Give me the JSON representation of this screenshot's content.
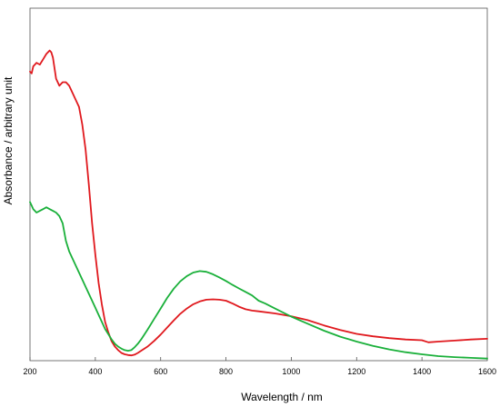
{
  "chart_data": {
    "type": "line",
    "xlabel": "Wavelength / nm",
    "ylabel": "Absorbance / arbitrary unit",
    "xlim": [
      200,
      1600
    ],
    "ylim": [
      0,
      1
    ],
    "x_ticks": [
      200,
      400,
      600,
      800,
      1000,
      1200,
      1400,
      1600
    ],
    "y_ticks_shown": false,
    "grid": false,
    "legend": "none",
    "series": [
      {
        "color": "#e0191e",
        "x": [
          200,
          205,
          210,
          220,
          230,
          240,
          250,
          260,
          265,
          270,
          280,
          290,
          300,
          310,
          320,
          330,
          340,
          350,
          360,
          370,
          380,
          390,
          400,
          410,
          420,
          430,
          440,
          450,
          460,
          470,
          480,
          490,
          500,
          510,
          520,
          530,
          540,
          560,
          580,
          600,
          620,
          640,
          660,
          680,
          700,
          720,
          740,
          760,
          780,
          800,
          820,
          840,
          860,
          880,
          900,
          950,
          1000,
          1050,
          1100,
          1150,
          1200,
          1250,
          1300,
          1350,
          1400,
          1420,
          1450,
          1500,
          1550,
          1600
        ],
        "y": [
          0.82,
          0.815,
          0.835,
          0.845,
          0.84,
          0.855,
          0.87,
          0.88,
          0.875,
          0.86,
          0.8,
          0.78,
          0.79,
          0.79,
          0.78,
          0.76,
          0.74,
          0.72,
          0.67,
          0.6,
          0.5,
          0.39,
          0.3,
          0.22,
          0.16,
          0.11,
          0.08,
          0.055,
          0.04,
          0.03,
          0.022,
          0.018,
          0.016,
          0.015,
          0.017,
          0.022,
          0.028,
          0.04,
          0.056,
          0.074,
          0.094,
          0.114,
          0.133,
          0.148,
          0.16,
          0.168,
          0.173,
          0.174,
          0.173,
          0.17,
          0.162,
          0.153,
          0.146,
          0.142,
          0.14,
          0.134,
          0.126,
          0.115,
          0.1,
          0.087,
          0.076,
          0.069,
          0.064,
          0.06,
          0.058,
          0.052,
          0.054,
          0.057,
          0.06,
          0.062
        ]
      },
      {
        "color": "#1ab03a",
        "x": [
          200,
          205,
          210,
          220,
          230,
          240,
          250,
          260,
          270,
          280,
          290,
          300,
          310,
          320,
          330,
          340,
          350,
          360,
          370,
          380,
          390,
          400,
          410,
          420,
          430,
          440,
          450,
          460,
          470,
          480,
          490,
          500,
          510,
          520,
          530,
          540,
          560,
          580,
          600,
          620,
          640,
          660,
          680,
          700,
          720,
          740,
          760,
          780,
          800,
          820,
          840,
          860,
          880,
          900,
          920,
          950,
          1000,
          1050,
          1100,
          1150,
          1200,
          1250,
          1300,
          1350,
          1400,
          1450,
          1500,
          1550,
          1600
        ],
        "y": [
          0.45,
          0.44,
          0.43,
          0.42,
          0.425,
          0.43,
          0.435,
          0.43,
          0.425,
          0.42,
          0.41,
          0.39,
          0.34,
          0.31,
          0.29,
          0.27,
          0.25,
          0.23,
          0.21,
          0.19,
          0.17,
          0.15,
          0.13,
          0.11,
          0.09,
          0.075,
          0.06,
          0.048,
          0.04,
          0.034,
          0.03,
          0.028,
          0.03,
          0.038,
          0.048,
          0.06,
          0.088,
          0.118,
          0.148,
          0.178,
          0.204,
          0.225,
          0.24,
          0.25,
          0.254,
          0.252,
          0.245,
          0.236,
          0.226,
          0.215,
          0.205,
          0.195,
          0.185,
          0.17,
          0.162,
          0.148,
          0.125,
          0.105,
          0.085,
          0.068,
          0.054,
          0.042,
          0.032,
          0.024,
          0.018,
          0.013,
          0.01,
          0.008,
          0.006
        ]
      }
    ]
  }
}
